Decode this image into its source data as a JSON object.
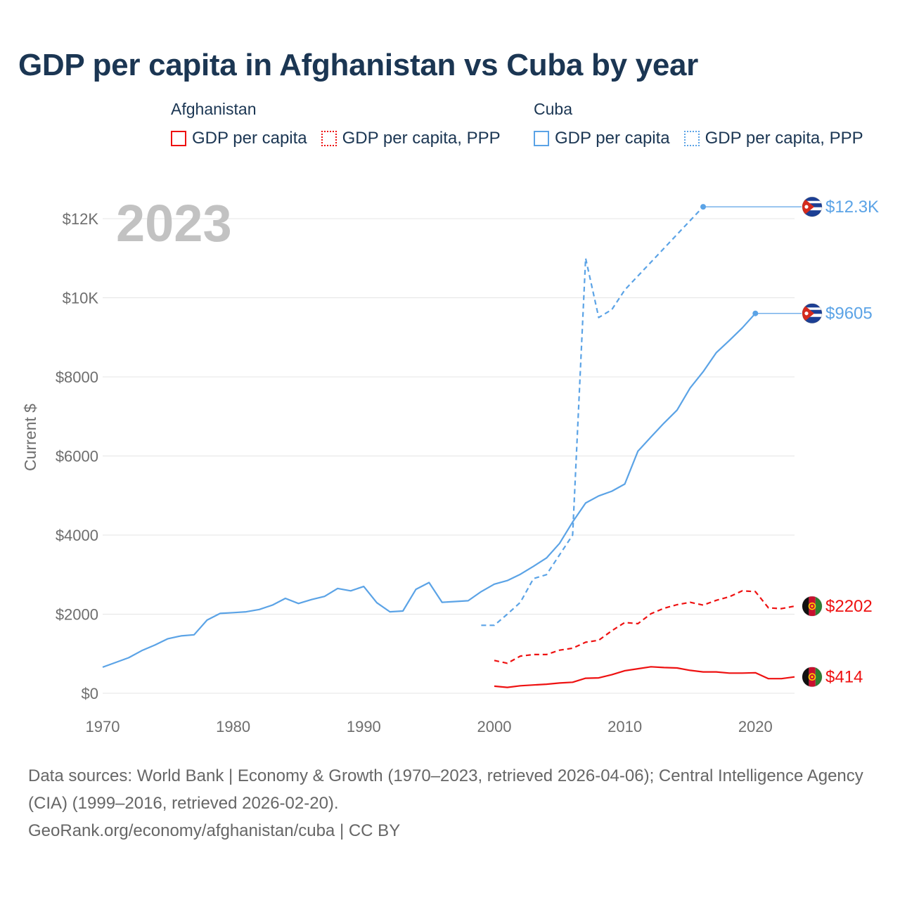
{
  "title": "GDP per capita in Afghanistan vs Cuba by year",
  "legend": [
    {
      "group": "Afghanistan",
      "color": "#ee1111",
      "items": [
        {
          "label": "GDP per capita",
          "style": "solid"
        },
        {
          "label": "GDP per capita, PPP",
          "style": "dotted"
        }
      ]
    },
    {
      "group": "Cuba",
      "color": "#5ba3e6",
      "items": [
        {
          "label": "GDP per capita",
          "style": "solid"
        },
        {
          "label": "GDP per capita, PPP",
          "style": "dotted"
        }
      ]
    }
  ],
  "chart_data": {
    "type": "line",
    "year_label": "2023",
    "ylabel": "Current $",
    "xlim": [
      1970,
      2023
    ],
    "ylim": [
      0,
      12500
    ],
    "y_ticks": [
      {
        "value": 0,
        "label": "$0"
      },
      {
        "value": 2000,
        "label": "$2000"
      },
      {
        "value": 4000,
        "label": "$4000"
      },
      {
        "value": 6000,
        "label": "$6000"
      },
      {
        "value": 8000,
        "label": "$8000"
      },
      {
        "value": 10000,
        "label": "$10K"
      },
      {
        "value": 12000,
        "label": "$12K"
      }
    ],
    "x_ticks": [
      {
        "value": 1970,
        "label": "1970"
      },
      {
        "value": 1980,
        "label": "1980"
      },
      {
        "value": 1990,
        "label": "1990"
      },
      {
        "value": 2000,
        "label": "2000"
      },
      {
        "value": 2010,
        "label": "2010"
      },
      {
        "value": 2020,
        "label": "2020"
      }
    ],
    "series": [
      {
        "name": "Cuba GDP per capita, PPP",
        "country": "Cuba",
        "flag": "cuba",
        "color": "#5ba3e6",
        "dash": "dashed",
        "end_label": "$12.3K",
        "extend_to": 2023,
        "points": [
          [
            1999,
            1720
          ],
          [
            2000,
            1720
          ],
          [
            2001,
            2000
          ],
          [
            2002,
            2300
          ],
          [
            2003,
            2900
          ],
          [
            2004,
            3000
          ],
          [
            2005,
            3500
          ],
          [
            2006,
            4000
          ],
          [
            2007,
            11000
          ],
          [
            2008,
            9500
          ],
          [
            2009,
            9700
          ],
          [
            2010,
            10200
          ],
          [
            2016,
            12300
          ]
        ]
      },
      {
        "name": "Cuba GDP per capita",
        "country": "Cuba",
        "flag": "cuba",
        "color": "#5ba3e6",
        "dash": "solid",
        "end_label": "$9605",
        "extend_to": 2023,
        "points": [
          [
            1970,
            660
          ],
          [
            1971,
            780
          ],
          [
            1972,
            900
          ],
          [
            1973,
            1080
          ],
          [
            1974,
            1220
          ],
          [
            1975,
            1380
          ],
          [
            1976,
            1450
          ],
          [
            1977,
            1480
          ],
          [
            1978,
            1850
          ],
          [
            1979,
            2020
          ],
          [
            1980,
            2040
          ],
          [
            1981,
            2060
          ],
          [
            1982,
            2120
          ],
          [
            1983,
            2230
          ],
          [
            1984,
            2400
          ],
          [
            1985,
            2270
          ],
          [
            1986,
            2370
          ],
          [
            1987,
            2450
          ],
          [
            1988,
            2650
          ],
          [
            1989,
            2590
          ],
          [
            1990,
            2700
          ],
          [
            1991,
            2290
          ],
          [
            1992,
            2060
          ],
          [
            1993,
            2080
          ],
          [
            1994,
            2630
          ],
          [
            1995,
            2800
          ],
          [
            1996,
            2300
          ],
          [
            1997,
            2320
          ],
          [
            1998,
            2340
          ],
          [
            1999,
            2570
          ],
          [
            2000,
            2760
          ],
          [
            2001,
            2850
          ],
          [
            2002,
            3010
          ],
          [
            2003,
            3210
          ],
          [
            2004,
            3420
          ],
          [
            2005,
            3790
          ],
          [
            2006,
            4330
          ],
          [
            2007,
            4810
          ],
          [
            2008,
            4990
          ],
          [
            2009,
            5110
          ],
          [
            2010,
            5290
          ],
          [
            2011,
            6120
          ],
          [
            2012,
            6480
          ],
          [
            2013,
            6830
          ],
          [
            2014,
            7160
          ],
          [
            2015,
            7720
          ],
          [
            2016,
            8130
          ],
          [
            2017,
            8610
          ],
          [
            2018,
            8920
          ],
          [
            2019,
            9240
          ],
          [
            2020,
            9605
          ]
        ]
      },
      {
        "name": "Afghanistan GDP per capita, PPP",
        "country": "Afghanistan",
        "flag": "afghanistan",
        "color": "#ee1111",
        "dash": "dashed",
        "end_label": "$2202",
        "extend_to": 2023,
        "points": [
          [
            2000,
            830
          ],
          [
            2001,
            760
          ],
          [
            2002,
            940
          ],
          [
            2003,
            980
          ],
          [
            2004,
            980
          ],
          [
            2005,
            1090
          ],
          [
            2006,
            1140
          ],
          [
            2007,
            1290
          ],
          [
            2008,
            1340
          ],
          [
            2009,
            1580
          ],
          [
            2010,
            1790
          ],
          [
            2011,
            1760
          ],
          [
            2012,
            2010
          ],
          [
            2013,
            2150
          ],
          [
            2014,
            2240
          ],
          [
            2015,
            2300
          ],
          [
            2016,
            2230
          ],
          [
            2017,
            2350
          ],
          [
            2018,
            2440
          ],
          [
            2019,
            2590
          ],
          [
            2020,
            2570
          ],
          [
            2021,
            2160
          ],
          [
            2022,
            2140
          ],
          [
            2023,
            2202
          ]
        ]
      },
      {
        "name": "Afghanistan GDP per capita",
        "country": "Afghanistan",
        "flag": "afghanistan",
        "color": "#ee1111",
        "dash": "solid",
        "end_label": "$414",
        "extend_to": 2023,
        "points": [
          [
            2000,
            180
          ],
          [
            2001,
            150
          ],
          [
            2002,
            190
          ],
          [
            2003,
            210
          ],
          [
            2004,
            230
          ],
          [
            2005,
            260
          ],
          [
            2006,
            280
          ],
          [
            2007,
            380
          ],
          [
            2008,
            390
          ],
          [
            2009,
            470
          ],
          [
            2010,
            570
          ],
          [
            2011,
            620
          ],
          [
            2012,
            670
          ],
          [
            2013,
            650
          ],
          [
            2014,
            640
          ],
          [
            2015,
            580
          ],
          [
            2016,
            540
          ],
          [
            2017,
            540
          ],
          [
            2018,
            510
          ],
          [
            2019,
            510
          ],
          [
            2020,
            520
          ],
          [
            2021,
            370
          ],
          [
            2022,
            370
          ],
          [
            2023,
            414
          ]
        ]
      }
    ]
  },
  "footer": {
    "sources": "Data sources: World Bank | Economy & Growth (1970–2023, retrieved 2026-04-06); Central Intelligence Agency (CIA) (1999–2016, retrieved 2026-02-20).",
    "credit": "GeoRank.org/economy/afghanistan/cuba | CC BY"
  }
}
